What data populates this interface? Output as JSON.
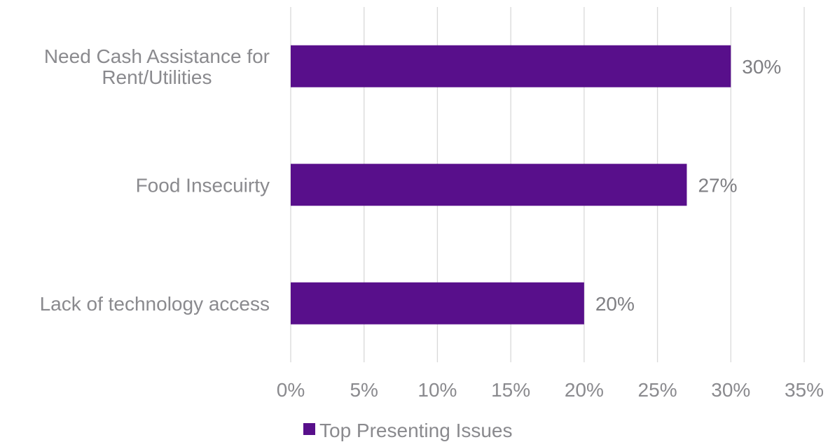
{
  "chart_data": {
    "type": "bar",
    "orientation": "horizontal",
    "categories": [
      [
        "Need Cash Assistance for",
        "Rent/Utilities"
      ],
      [
        "Food Insecuirty"
      ],
      [
        "Lack of technology access"
      ]
    ],
    "series": [
      {
        "name": "Top Presenting Issues",
        "color": "#580f8b",
        "values": [
          0.3,
          0.27,
          0.2
        ],
        "labels": [
          "30%",
          "27%",
          "20%"
        ]
      }
    ],
    "xlim": [
      0,
      0.35
    ],
    "xticks": [
      0,
      0.05,
      0.1,
      0.15,
      0.2,
      0.25,
      0.3,
      0.35
    ],
    "xtick_labels": [
      "0%",
      "5%",
      "10%",
      "15%",
      "20%",
      "25%",
      "30%",
      "35%"
    ],
    "grid": "vertical",
    "legend_position": "bottom",
    "title": "",
    "xlabel": "",
    "ylabel": ""
  }
}
